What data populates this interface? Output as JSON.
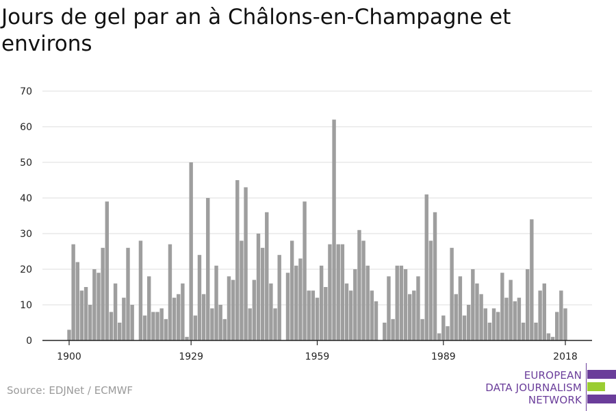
{
  "title": "Jours de gel par an à Châlons-en-Champagne et environs",
  "source": "Source: EDJNet / ECMWF",
  "logo": {
    "line1": "EUROPEAN",
    "line2": "DATA JOURNALISM",
    "line3": "NETWORK",
    "color_purple": "#6a3d9a",
    "color_green": "#9acd32"
  },
  "chart_data": {
    "type": "bar",
    "title": "Jours de gel par an à Châlons-en-Champagne et environs",
    "xlabel": "",
    "ylabel": "",
    "ylim": [
      0,
      70
    ],
    "yticks": [
      0,
      10,
      20,
      30,
      40,
      50,
      60,
      70
    ],
    "xticks": [
      1900,
      1929,
      1959,
      1989,
      2018
    ],
    "grid": true,
    "bar_color": "#9e9e9e",
    "x": [
      1900,
      1901,
      1902,
      1903,
      1904,
      1905,
      1906,
      1907,
      1908,
      1909,
      1910,
      1911,
      1912,
      1913,
      1914,
      1915,
      1916,
      1917,
      1918,
      1919,
      1920,
      1921,
      1922,
      1923,
      1924,
      1925,
      1926,
      1927,
      1928,
      1929,
      1930,
      1931,
      1932,
      1933,
      1934,
      1935,
      1936,
      1937,
      1938,
      1939,
      1940,
      1941,
      1942,
      1943,
      1944,
      1945,
      1946,
      1947,
      1948,
      1949,
      1950,
      1951,
      1952,
      1953,
      1954,
      1955,
      1956,
      1957,
      1958,
      1959,
      1960,
      1961,
      1962,
      1963,
      1964,
      1965,
      1966,
      1967,
      1968,
      1969,
      1970,
      1971,
      1972,
      1973,
      1974,
      1975,
      1976,
      1977,
      1978,
      1979,
      1980,
      1981,
      1982,
      1983,
      1984,
      1985,
      1986,
      1987,
      1988,
      1989,
      1990,
      1991,
      1992,
      1993,
      1994,
      1995,
      1996,
      1997,
      1998,
      1999,
      2000,
      2001,
      2002,
      2003,
      2004,
      2005,
      2006,
      2007,
      2008,
      2009,
      2010,
      2011,
      2012,
      2013,
      2014,
      2015,
      2016,
      2017,
      2018
    ],
    "values": [
      3,
      27,
      22,
      14,
      15,
      10,
      20,
      19,
      26,
      39,
      8,
      16,
      5,
      12,
      26,
      10,
      0,
      28,
      7,
      18,
      8,
      8,
      9,
      6,
      27,
      12,
      13,
      16,
      1,
      50,
      7,
      24,
      13,
      40,
      9,
      21,
      10,
      6,
      18,
      17,
      45,
      28,
      43,
      9,
      17,
      30,
      26,
      36,
      16,
      9,
      24,
      0,
      19,
      28,
      21,
      23,
      39,
      14,
      14,
      12,
      21,
      15,
      27,
      62,
      27,
      27,
      16,
      14,
      20,
      31,
      28,
      21,
      14,
      11,
      0,
      5,
      18,
      6,
      21,
      21,
      20,
      13,
      14,
      18,
      6,
      41,
      28,
      36,
      2,
      7,
      4,
      26,
      13,
      18,
      7,
      10,
      20,
      16,
      13,
      9,
      5,
      9,
      8,
      19,
      12,
      17,
      11,
      12,
      5,
      20,
      34,
      5,
      14,
      16,
      2,
      1,
      8,
      14,
      9
    ]
  }
}
